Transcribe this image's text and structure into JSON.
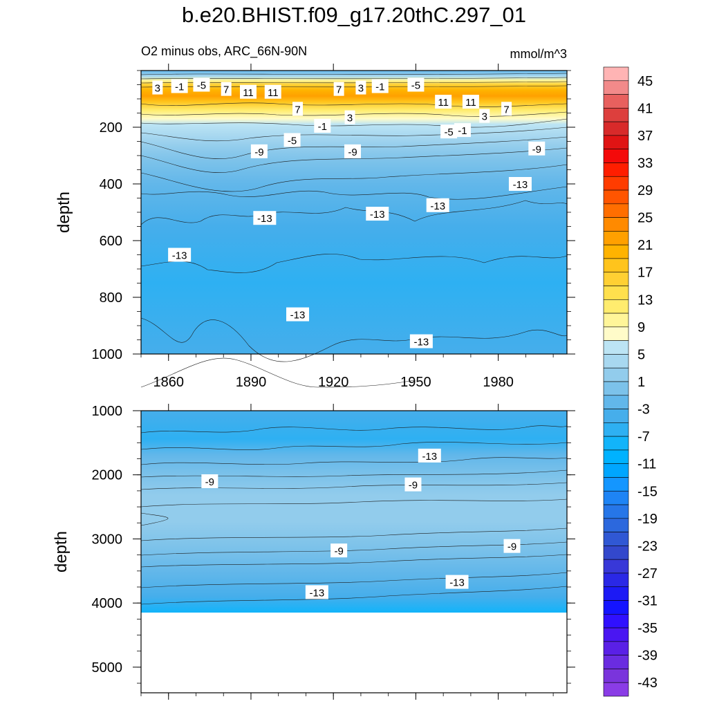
{
  "chart_data": [
    {
      "type": "heatmap",
      "panel": "upper",
      "title": "b.e20.BHIST.f09_g17.20thC.297_01",
      "subtitle": "O2 minus obs, ARC_66N-90N",
      "units": "mmol/m^3",
      "xlabel": "",
      "ylabel": "depth",
      "xlim": [
        1850,
        2005
      ],
      "ylim": [
        1000,
        0
      ],
      "x_ticks": [
        "1860",
        "1890",
        "1920",
        "1950",
        "1980"
      ],
      "y_ticks": [
        "200",
        "400",
        "600",
        "800",
        "1000"
      ],
      "contour_labels": [
        {
          "text": "3",
          "x": 1856,
          "depth": 60
        },
        {
          "text": "-1",
          "x": 1864,
          "depth": 55
        },
        {
          "text": "-5",
          "x": 1872,
          "depth": 50
        },
        {
          "text": "7",
          "x": 1881,
          "depth": 65
        },
        {
          "text": "11",
          "x": 1889,
          "depth": 75
        },
        {
          "text": "11",
          "x": 1898,
          "depth": 75
        },
        {
          "text": "7",
          "x": 1907,
          "depth": 135
        },
        {
          "text": "3",
          "x": 1926,
          "depth": 165
        },
        {
          "text": "-1",
          "x": 1916,
          "depth": 195
        },
        {
          "text": "-5",
          "x": 1905,
          "depth": 245
        },
        {
          "text": "-9",
          "x": 1893,
          "depth": 285
        },
        {
          "text": "7",
          "x": 1922,
          "depth": 65
        },
        {
          "text": "3",
          "x": 1930,
          "depth": 60
        },
        {
          "text": "-1",
          "x": 1937,
          "depth": 55
        },
        {
          "text": "-5",
          "x": 1950,
          "depth": 50
        },
        {
          "text": "11",
          "x": 1960,
          "depth": 110
        },
        {
          "text": "11",
          "x": 1970,
          "depth": 110
        },
        {
          "text": "7",
          "x": 1983,
          "depth": 135
        },
        {
          "text": "3",
          "x": 1975,
          "depth": 160
        },
        {
          "text": "-1",
          "x": 1967,
          "depth": 210
        },
        {
          "text": "-5",
          "x": 1962,
          "depth": 215
        },
        {
          "text": "-9",
          "x": 1927,
          "depth": 285
        },
        {
          "text": "-9",
          "x": 1994,
          "depth": 275
        },
        {
          "text": "-13",
          "x": 1988,
          "depth": 400
        },
        {
          "text": "-13",
          "x": 1958,
          "depth": 475
        },
        {
          "text": "-13",
          "x": 1936,
          "depth": 505
        },
        {
          "text": "-13",
          "x": 1895,
          "depth": 520
        },
        {
          "text": "-13",
          "x": 1864,
          "depth": 650
        },
        {
          "text": "-13",
          "x": 1907,
          "depth": 860
        },
        {
          "text": "-13",
          "x": 1952,
          "depth": 955
        }
      ]
    },
    {
      "type": "heatmap",
      "panel": "lower",
      "xlabel": "",
      "ylabel": "depth",
      "xlim": [
        1850,
        2005
      ],
      "ylim": [
        5400,
        1000
      ],
      "y_ticks": [
        "1000",
        "2000",
        "3000",
        "4000",
        "5000"
      ],
      "data_bottom_depth": 4125,
      "contour_labels": [
        {
          "text": "-13",
          "x": 1955,
          "depth": 1700
        },
        {
          "text": "-9",
          "x": 1875,
          "depth": 2100
        },
        {
          "text": "-9",
          "x": 1949,
          "depth": 2150
        },
        {
          "text": "-9",
          "x": 1922,
          "depth": 3180
        },
        {
          "text": "-9",
          "x": 1985,
          "depth": 3110
        },
        {
          "text": "-13",
          "x": 1965,
          "depth": 3670
        },
        {
          "text": "-13",
          "x": 1914,
          "depth": 3830
        }
      ]
    }
  ],
  "colorbar": {
    "labels": [
      "45",
      "41",
      "37",
      "33",
      "29",
      "25",
      "21",
      "17",
      "13",
      "9",
      "5",
      "1",
      "-3",
      "-7",
      "-11",
      "-15",
      "-19",
      "-23",
      "-27",
      "-31",
      "-35",
      "-39",
      "-43"
    ],
    "colors": [
      "#FFB4B4",
      "#F28A8A",
      "#E8605E",
      "#DD3F3D",
      "#D82A2A",
      "#E01414",
      "#F40A0A",
      "#FF1E00",
      "#FF3C00",
      "#FF5500",
      "#FF6E00",
      "#FF8A00",
      "#FFA000",
      "#FFB300",
      "#FFC41C",
      "#FFD033",
      "#FFE04D",
      "#FFEC6E",
      "#FFF599",
      "#FFFBC9",
      "#BCE4F4",
      "#A8D8F0",
      "#92CCEC",
      "#7CC2EA",
      "#62B7EA",
      "#46AEEB",
      "#2EB0F2",
      "#12B4FA",
      "#00B2FF",
      "#00A6FF",
      "#1496FF",
      "#1E84F5",
      "#2676E8",
      "#2C68DD",
      "#3058D4",
      "#3348CC",
      "#3838D8",
      "#2A28E6",
      "#1C1AF5",
      "#1414FF",
      "#3010FF",
      "#4A16F2",
      "#5A20E6",
      "#6A2CE0",
      "#7A34DC",
      "#8A3CE6"
    ]
  }
}
